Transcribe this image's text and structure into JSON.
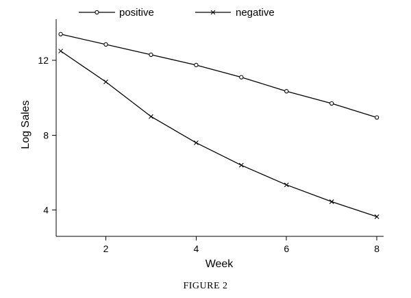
{
  "caption": "FIGURE 2",
  "chart_data": {
    "type": "line",
    "title": "",
    "xlabel": "Week",
    "ylabel": "Log Sales",
    "x": [
      1,
      2,
      3,
      4,
      5,
      6,
      7,
      8
    ],
    "xticks": [
      2,
      4,
      6,
      8
    ],
    "yticks": [
      4,
      8,
      12
    ],
    "xlim": [
      0.9,
      8.15
    ],
    "ylim": [
      2.6,
      14.2
    ],
    "grid": false,
    "legend_position": "top",
    "series": [
      {
        "name": "positive",
        "marker": "circle",
        "color": "#000000",
        "values": [
          13.4,
          12.85,
          12.3,
          11.75,
          11.1,
          10.35,
          9.7,
          8.95
        ]
      },
      {
        "name": "negative",
        "marker": "cross",
        "color": "#000000",
        "values": [
          12.5,
          10.85,
          9.0,
          7.6,
          6.4,
          5.35,
          4.45,
          3.65
        ]
      }
    ]
  }
}
